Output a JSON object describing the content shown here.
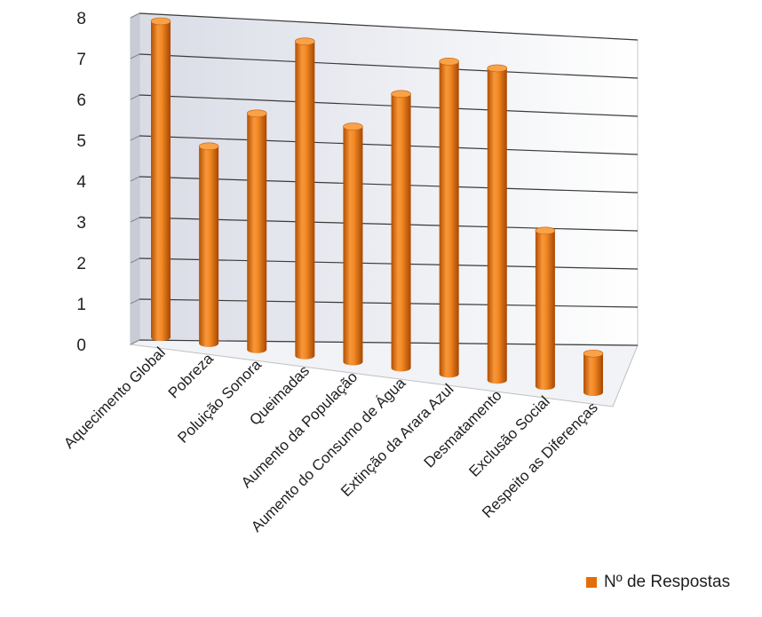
{
  "chart_data": {
    "type": "bar",
    "style": "3d-cylinder",
    "categories": [
      "Aquecimento Global",
      "Pobreza",
      "Poluição Sonora",
      "Queimadas",
      "Aumento da População",
      "Aumento do Consumo de Água",
      "Extinção da Arara Azul",
      "Desmatamento",
      "Exclusão Social",
      "Respeito as Diferenças"
    ],
    "series": [
      {
        "name": "Nº de Respostas",
        "color": "#e46c0a",
        "values": [
          8,
          5,
          6,
          8,
          6,
          7,
          8,
          8,
          4,
          1
        ]
      }
    ],
    "ylim": [
      0,
      8
    ],
    "yticks": [
      "0",
      "1",
      "2",
      "3",
      "4",
      "5",
      "6",
      "7",
      "8"
    ],
    "grid": true,
    "legend_position": "bottom-right"
  }
}
